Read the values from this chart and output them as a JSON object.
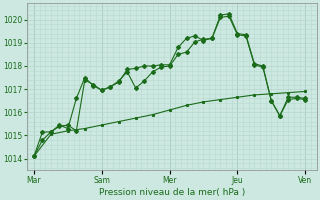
{
  "bg_color": "#cce8e0",
  "grid_color": "#b8d8d0",
  "line_color": "#1a6b1a",
  "marker_color": "#1a6b1a",
  "xlabel": "Pression niveau de la mer( hPa )",
  "ylim": [
    1013.5,
    1020.7
  ],
  "yticks": [
    1014,
    1015,
    1016,
    1017,
    1018,
    1019,
    1020
  ],
  "day_labels": [
    "Mar",
    "Sam",
    "Mer",
    "Jeu",
    "Ven"
  ],
  "day_positions": [
    0,
    48,
    96,
    144,
    192
  ],
  "xmin": -5,
  "xmax": 200,
  "line1_x": [
    0,
    12,
    24,
    36,
    48,
    60,
    72,
    84,
    96,
    108,
    120,
    132,
    144,
    156,
    168,
    180,
    192
  ],
  "line1_y": [
    1014.1,
    1015.05,
    1015.2,
    1015.3,
    1015.45,
    1015.6,
    1015.75,
    1015.9,
    1016.1,
    1016.3,
    1016.45,
    1016.55,
    1016.65,
    1016.75,
    1016.8,
    1016.85,
    1016.9
  ],
  "line2_x": [
    0,
    6,
    12,
    18,
    24,
    30,
    36,
    42,
    48,
    54,
    60,
    66,
    72,
    78,
    84,
    90,
    96,
    102,
    108,
    114,
    120,
    126,
    132,
    138,
    144,
    150,
    156,
    162,
    168,
    174,
    180,
    186,
    192
  ],
  "line2_y": [
    1014.1,
    1014.8,
    1015.15,
    1015.4,
    1015.45,
    1015.2,
    1017.4,
    1017.2,
    1016.95,
    1017.1,
    1017.35,
    1017.75,
    1017.05,
    1017.35,
    1017.75,
    1017.95,
    1018.0,
    1018.5,
    1018.6,
    1019.05,
    1019.15,
    1019.2,
    1020.1,
    1020.15,
    1019.35,
    1019.3,
    1018.05,
    1017.95,
    1016.5,
    1015.85,
    1016.55,
    1016.6,
    1016.55
  ],
  "line3_x": [
    0,
    6,
    12,
    18,
    24,
    30,
    36,
    42,
    48,
    54,
    60,
    66,
    72,
    78,
    84,
    90,
    96,
    102,
    108,
    114,
    120,
    126,
    132,
    138,
    144,
    150,
    156,
    162,
    168,
    174,
    180,
    186,
    192
  ],
  "line3_y": [
    1014.1,
    1015.15,
    1015.15,
    1015.45,
    1015.3,
    1016.6,
    1017.5,
    1017.15,
    1016.95,
    1017.1,
    1017.3,
    1017.85,
    1017.9,
    1018.0,
    1018.0,
    1018.05,
    1018.05,
    1018.8,
    1019.2,
    1019.3,
    1019.1,
    1019.2,
    1020.2,
    1020.25,
    1019.4,
    1019.35,
    1018.1,
    1018.0,
    1016.5,
    1015.85,
    1016.65,
    1016.65,
    1016.6
  ]
}
